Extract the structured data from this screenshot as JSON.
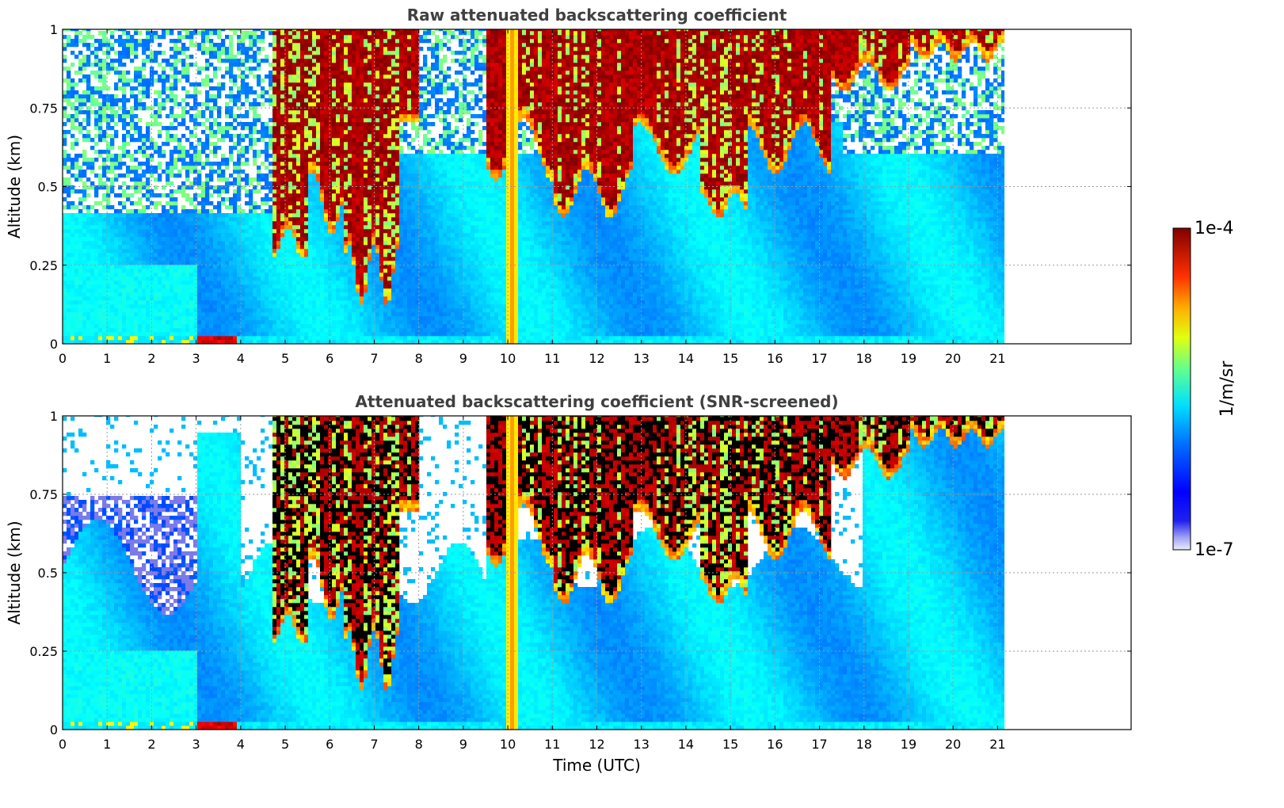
{
  "chart_data": [
    {
      "type": "heatmap",
      "title": "Raw attenuated backscattering coefficient",
      "xlabel": "",
      "ylabel": "Altitude (km)",
      "xlim": [
        0,
        24
      ],
      "ylim": [
        0,
        1
      ],
      "x_ticks": [
        0,
        1,
        2,
        3,
        4,
        5,
        6,
        7,
        8,
        9,
        10,
        11,
        12,
        13,
        14,
        15,
        16,
        17,
        18,
        19,
        20,
        21
      ],
      "y_ticks": [
        0,
        0.25,
        0.5,
        0.75,
        1
      ],
      "y_tick_labels": [
        "0",
        "0.25",
        "0.5",
        "0.75",
        "1"
      ],
      "data_end_time": 21.15,
      "grid": true,
      "screened": false
    },
    {
      "type": "heatmap",
      "title": "Attenuated backscattering coefficient (SNR-screened)",
      "xlabel": "Time (UTC)",
      "ylabel": "Altitude (km)",
      "xlim": [
        0,
        24
      ],
      "ylim": [
        0,
        1
      ],
      "x_ticks": [
        0,
        1,
        2,
        3,
        4,
        5,
        6,
        7,
        8,
        9,
        10,
        11,
        12,
        13,
        14,
        15,
        16,
        17,
        18,
        19,
        20,
        21
      ],
      "y_ticks": [
        0,
        0.25,
        0.5,
        0.75,
        1
      ],
      "y_tick_labels": [
        "0",
        "0.25",
        "0.5",
        "0.75",
        "1"
      ],
      "data_end_time": 21.15,
      "grid": true,
      "screened": true
    }
  ],
  "colorbar": {
    "label": "1/m/sr",
    "min_label": "1e-7",
    "max_label": "1e-4",
    "scale": "log",
    "colormap": "jet",
    "colors": [
      "#e8e8fa",
      "#0000cc",
      "#0000ff",
      "#0080ff",
      "#00ffff",
      "#80ff80",
      "#ffff00",
      "#ff8000",
      "#ff0000",
      "#800000"
    ]
  }
}
